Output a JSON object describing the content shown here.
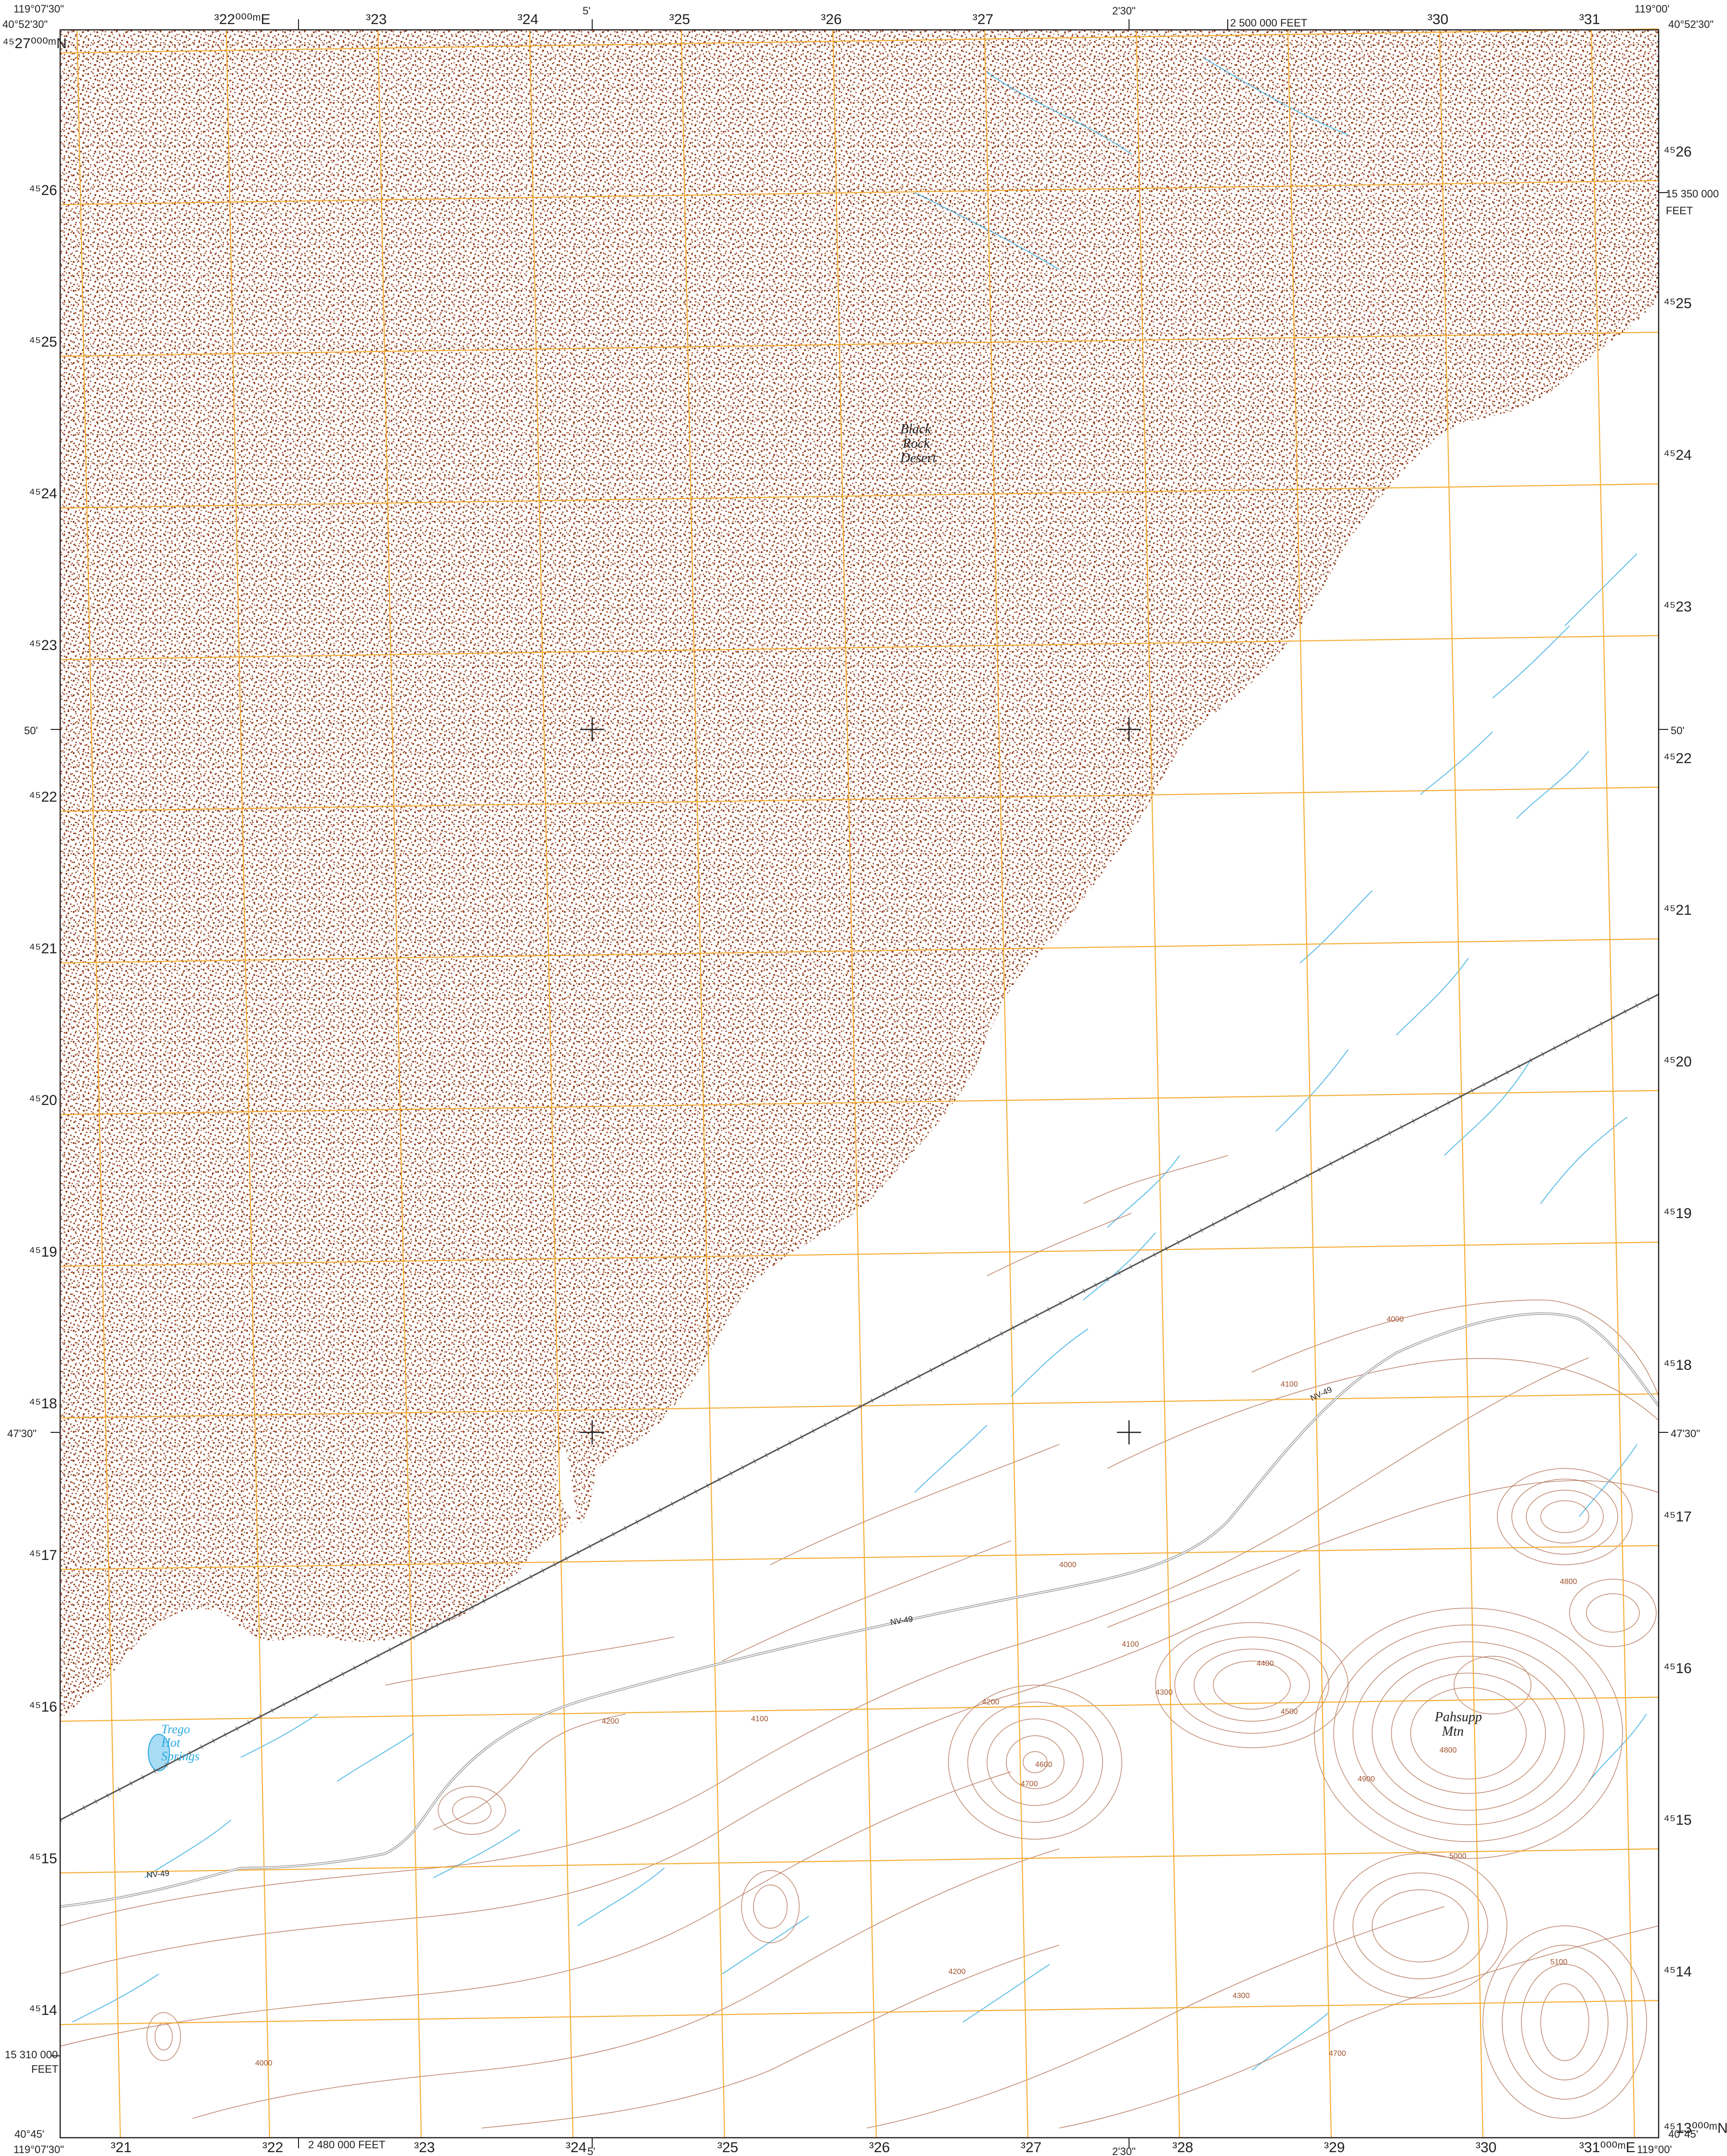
{
  "map": {
    "corners": {
      "top_left_lon": "119°07'30\"",
      "top_left_lat": "40°52'30\"",
      "top_right_lon": "119°00'",
      "top_right_lat": "40°52'30\"",
      "bottom_left_lon": "119°07'30\"",
      "bottom_left_lat": "40°45'",
      "bottom_right_lon": "119°00'",
      "bottom_right_lat": "40°45'"
    },
    "top_ticks": {
      "easting_first": "³22⁰⁰⁰ᵐE",
      "eastings": [
        "³23",
        "³24",
        "³25",
        "³26",
        "³27",
        "³30",
        "³31"
      ],
      "minute_5": "5'",
      "minute_230": "2'30\"",
      "feet": "2 500 000 FEET"
    },
    "bottom_ticks": {
      "eastings": [
        "³21",
        "³22",
        "³23",
        "³24",
        "³25",
        "³26",
        "³27",
        "³28",
        "³29",
        "³30"
      ],
      "easting_last": "³31⁰⁰⁰ᵐE",
      "minute_5": "5'",
      "minute_230": "2'30\"",
      "feet": "2 480 000 FEET"
    },
    "left_ticks": {
      "northing_first": "⁴⁵27⁰⁰⁰ᵐN",
      "northings": [
        "⁴⁵26",
        "⁴⁵25",
        "⁴⁵24",
        "⁴⁵23",
        "⁴⁵22",
        "⁴⁵21",
        "⁴⁵20",
        "⁴⁵19",
        "⁴⁵18",
        "⁴⁵17",
        "⁴⁵16",
        "⁴⁵15",
        "⁴⁵14"
      ],
      "minute_50": "50'",
      "minute_4730": "47'30\"",
      "feet_value": "15 310 000",
      "feet_unit": "FEET"
    },
    "right_ticks": {
      "northings": [
        "⁴⁵26",
        "⁴⁵25",
        "⁴⁵24",
        "⁴⁵23",
        "⁴⁵22",
        "⁴⁵21",
        "⁴⁵20",
        "⁴⁵19",
        "⁴⁵18",
        "⁴⁵17",
        "⁴⁵16",
        "⁴⁵15",
        "⁴⁵14"
      ],
      "northing_last": "⁴⁵13⁰⁰⁰ᵐN",
      "minute_50": "50'",
      "minute_4730": "47'30\"",
      "feet_value": "15 350 000",
      "feet_unit": "FEET"
    },
    "place_names": {
      "desert_line1": "Black",
      "desert_line2": "Rock",
      "desert_line3": "Desert",
      "spring_line1": "Trego",
      "spring_line2": "Hot",
      "spring_line3": "Springs",
      "mountain_line1": "Pahsupp",
      "mountain_line2": "Mtn"
    },
    "road_labels": [
      "NV-49",
      "NV-49",
      "NV-49"
    ],
    "contour_labels": [
      "4000",
      "4100",
      "4100",
      "4200",
      "4200",
      "4300",
      "4400",
      "4500",
      "4600",
      "4700",
      "4800",
      "4900",
      "5000",
      "5100",
      "4000",
      "4100",
      "4200",
      "4300",
      "4000",
      "4700",
      "4800"
    ],
    "colors": {
      "playa_dots": "#8b3a1a",
      "grid": "#f5a623",
      "contour": "#b5765a",
      "water": "#2ba9e0",
      "road": "#888888",
      "railroad": "#555555",
      "neatline": "#231f20"
    },
    "icons": [
      "crosshair-icon"
    ]
  }
}
